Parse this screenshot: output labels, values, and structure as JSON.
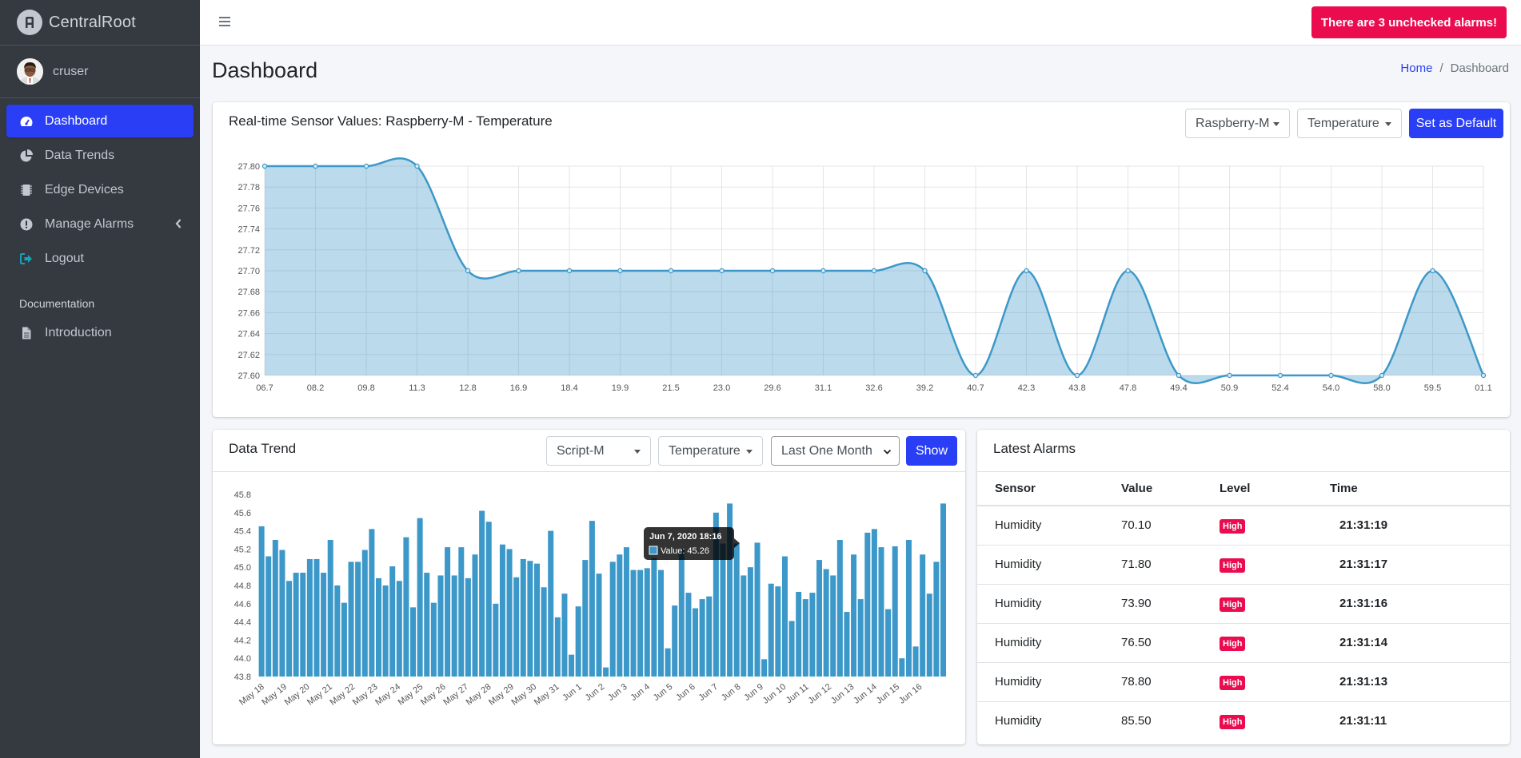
{
  "app": {
    "brand": "CentralRoot",
    "user": "cruser"
  },
  "sidebar": {
    "items": [
      {
        "label": "Dashboard",
        "icon": "gauge-icon",
        "active": true
      },
      {
        "label": "Data Trends",
        "icon": "pie-chart-icon"
      },
      {
        "label": "Edge Devices",
        "icon": "microchip-icon"
      },
      {
        "label": "Manage Alarms",
        "icon": "exclamation-circle-icon"
      },
      {
        "label": "Logout",
        "icon": "sign-out-icon"
      }
    ],
    "section_header": "Documentation",
    "doc_items": [
      {
        "label": "Introduction",
        "icon": "file-icon"
      }
    ]
  },
  "topbar": {
    "alarm_button": "There are 3 unchecked alarms!"
  },
  "header": {
    "title": "Dashboard",
    "breadcrumb": [
      "Home",
      "Dashboard"
    ]
  },
  "realtime": {
    "title": "Real-time Sensor Values: Raspberry-M - Temperature",
    "device_select": "Raspberry-M",
    "sensor_select": "Temperature",
    "default_button": "Set as Default"
  },
  "trend": {
    "title": "Data Trend",
    "device_select": "Script-M",
    "sensor_select": "Temperature",
    "range_select": "Last One Month",
    "show_button": "Show",
    "tooltip": {
      "date": "Jun 7, 2020 18:16",
      "value": "Value: 45.26"
    }
  },
  "alarms": {
    "title": "Latest Alarms",
    "headers": [
      "Sensor",
      "Value",
      "Level",
      "Time"
    ],
    "rows": [
      {
        "sensor": "Humidity",
        "value": "70.10",
        "level": "High",
        "time": "21:31:19"
      },
      {
        "sensor": "Humidity",
        "value": "71.80",
        "level": "High",
        "time": "21:31:17"
      },
      {
        "sensor": "Humidity",
        "value": "73.90",
        "level": "High",
        "time": "21:31:16"
      },
      {
        "sensor": "Humidity",
        "value": "76.50",
        "level": "High",
        "time": "21:31:14"
      },
      {
        "sensor": "Humidity",
        "value": "78.80",
        "level": "High",
        "time": "21:31:13"
      },
      {
        "sensor": "Humidity",
        "value": "85.50",
        "level": "High",
        "time": "21:31:11"
      }
    ]
  },
  "colors": {
    "accent": "#2a3ff5",
    "alarm": "#ea0c4f",
    "sidebar": "#343a40",
    "series": "#3c98c9"
  },
  "chart_data": [
    {
      "type": "area",
      "x": [
        "06.7",
        "08.2",
        "09.8",
        "11.3",
        "12.8",
        "16.9",
        "18.4",
        "19.9",
        "21.5",
        "23.0",
        "29.6",
        "31.1",
        "32.6",
        "39.2",
        "40.7",
        "42.3",
        "43.8",
        "47.8",
        "49.4",
        "50.9",
        "52.4",
        "54.0",
        "58.0",
        "59.5",
        "01.1"
      ],
      "values": [
        27.8,
        27.8,
        27.8,
        27.8,
        27.7,
        27.7,
        27.7,
        27.7,
        27.7,
        27.7,
        27.7,
        27.7,
        27.7,
        27.7,
        27.6,
        27.7,
        27.6,
        27.7,
        27.6,
        27.6,
        27.6,
        27.6,
        27.6,
        27.7,
        27.6
      ],
      "ylim": [
        27.6,
        27.8
      ],
      "yticks": [
        "27.80",
        "27.78",
        "27.76",
        "27.74",
        "27.72",
        "27.70",
        "27.68",
        "27.66",
        "27.64",
        "27.62",
        "27.60"
      ],
      "grid": true
    },
    {
      "type": "bar",
      "xticks": [
        "May 18",
        "May 19",
        "May 20",
        "May 21",
        "May 22",
        "May 23",
        "May 24",
        "May 25",
        "May 26",
        "May 27",
        "May 28",
        "May 29",
        "May 30",
        "May 31",
        "Jun 1",
        "Jun 2",
        "Jun 3",
        "Jun 4",
        "Jun 5",
        "Jun 6",
        "Jun 7",
        "Jun 8",
        "Jun 9",
        "Jun 10",
        "Jun 11",
        "Jun 12",
        "Jun 13",
        "Jun 14",
        "Jun 15",
        "Jun 16"
      ],
      "yticks": [
        "45.8",
        "45.6",
        "45.4",
        "45.2",
        "45.0",
        "44.8",
        "44.6",
        "44.4",
        "44.2",
        "44.0",
        "43.8"
      ],
      "ylim": [
        43.8,
        45.8
      ],
      "values": [
        45.45,
        45.12,
        45.3,
        45.19,
        44.85,
        44.94,
        44.94,
        45.09,
        45.09,
        44.94,
        45.3,
        44.8,
        44.61,
        45.06,
        45.06,
        45.19,
        45.42,
        44.88,
        44.8,
        45.01,
        44.85,
        45.33,
        44.56,
        45.54,
        44.94,
        44.61,
        44.91,
        45.22,
        44.91,
        45.22,
        44.88,
        45.14,
        45.62,
        45.5,
        44.6,
        45.25,
        45.2,
        44.89,
        45.09,
        45.07,
        45.04,
        44.78,
        45.4,
        44.45,
        44.71,
        44.04,
        44.57,
        45.08,
        45.51,
        44.93,
        43.9,
        45.06,
        45.14,
        45.22,
        44.97,
        44.97,
        44.99,
        45.1,
        44.97,
        44.11,
        44.58,
        45.2,
        44.72,
        44.55,
        44.65,
        44.68,
        45.6,
        45.26,
        45.7,
        45.26,
        44.91,
        45.0,
        45.27,
        43.99,
        44.82,
        44.79,
        45.12,
        44.41,
        44.73,
        44.65,
        44.72,
        45.08,
        44.98,
        44.91,
        45.3,
        44.51,
        45.14,
        44.65,
        45.38,
        45.42,
        45.22,
        44.54,
        45.23,
        44.0,
        45.3,
        44.13,
        45.14,
        44.71,
        45.06,
        45.7
      ]
    }
  ]
}
